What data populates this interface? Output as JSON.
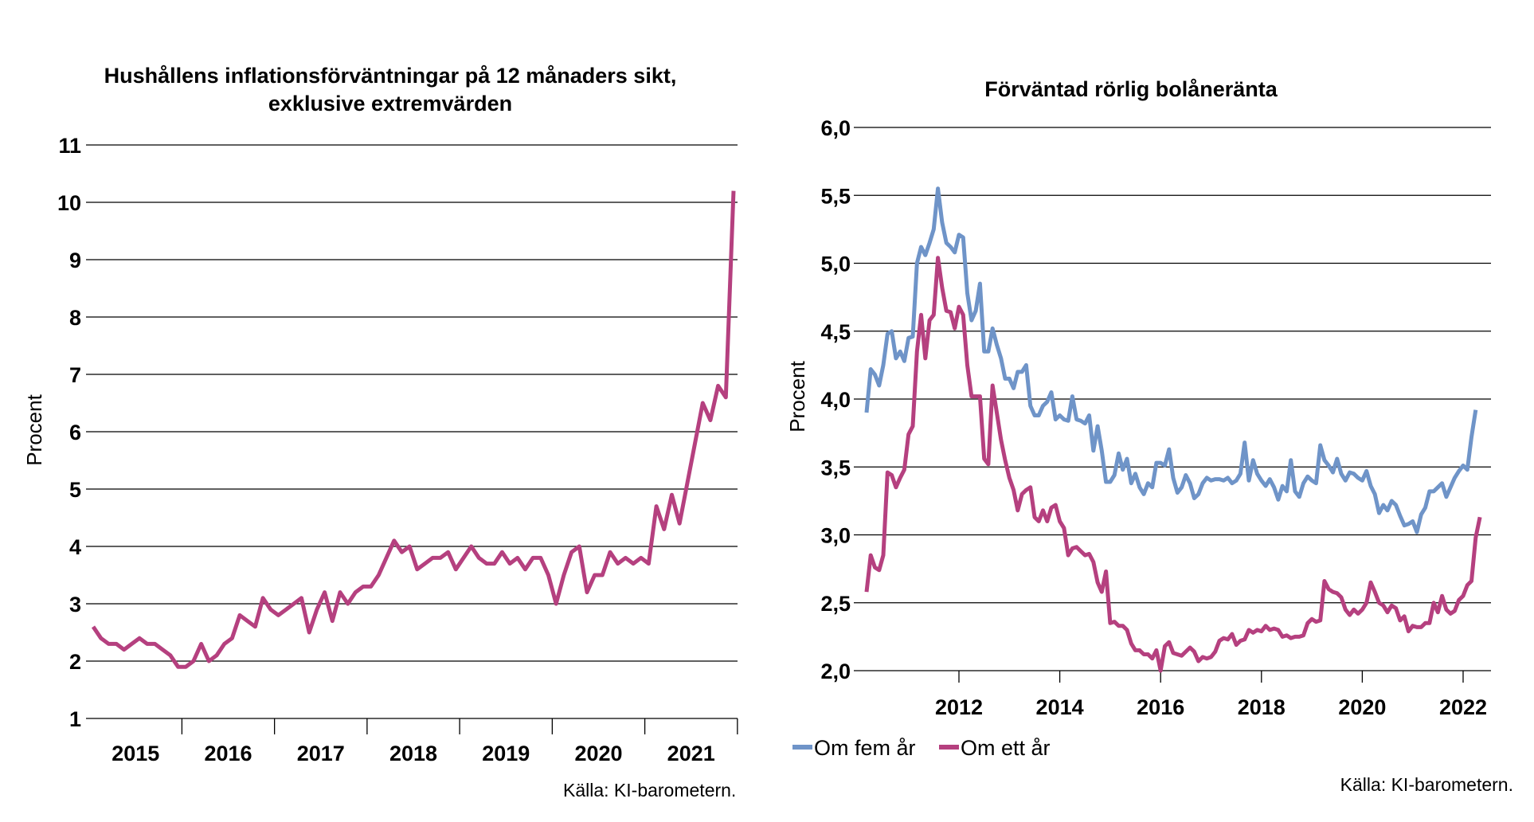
{
  "colors": {
    "inflation_line": "#B5407F",
    "five_year_line": "#6F94C8",
    "one_year_line": "#B5407F",
    "grid": "#000000"
  },
  "chart_data": [
    {
      "type": "line",
      "title_line1": "Hushållens inflationsförväntningar på 12 månaders sikt,",
      "title_line2": "exklusive extremvärden",
      "ylabel": "Procent",
      "xlabel": "",
      "ylim": [
        1,
        11
      ],
      "y_ticks": [
        "1",
        "2",
        "3",
        "4",
        "5",
        "6",
        "7",
        "8",
        "9",
        "10",
        "11"
      ],
      "x_ticks": [
        "2015",
        "2016",
        "2017",
        "2018",
        "2019",
        "2020",
        "2021"
      ],
      "grid": true,
      "legend": "none",
      "source": "Källa: KI-barometern.",
      "series": [
        {
          "color": "#B5407F",
          "x_start": "2015-01",
          "frequency": "monthly",
          "values": [
            2.6,
            2.4,
            2.3,
            2.3,
            2.2,
            2.3,
            2.4,
            2.3,
            2.3,
            2.2,
            2.1,
            1.9,
            1.9,
            2.0,
            2.3,
            2.0,
            2.1,
            2.3,
            2.4,
            2.8,
            2.7,
            2.6,
            3.1,
            2.9,
            2.8,
            2.9,
            3.0,
            3.1,
            2.5,
            2.9,
            3.2,
            2.7,
            3.2,
            3.0,
            3.2,
            3.3,
            3.3,
            3.5,
            3.8,
            4.1,
            3.9,
            4.0,
            3.6,
            3.7,
            3.8,
            3.8,
            3.9,
            3.6,
            3.8,
            4.0,
            3.8,
            3.7,
            3.7,
            3.9,
            3.7,
            3.8,
            3.6,
            3.8,
            3.8,
            3.5,
            3.0,
            3.5,
            3.9,
            4.0,
            3.2,
            3.5,
            3.5,
            3.9,
            3.7,
            3.8,
            3.7,
            3.8,
            3.7,
            4.7,
            4.3,
            4.9,
            4.4,
            5.1,
            5.8,
            6.5,
            6.2,
            6.8,
            6.6,
            10.2
          ]
        }
      ]
    },
    {
      "type": "line",
      "title": "Förväntad rörlig bolåneränta",
      "ylabel": "Procent",
      "xlabel": "",
      "ylim": [
        2.0,
        6.0
      ],
      "y_ticks": [
        "2,0",
        "2,5",
        "3,0",
        "3,5",
        "4,0",
        "4,5",
        "5,0",
        "5,5",
        "6,0"
      ],
      "x_ticks": [
        "2012",
        "2014",
        "2016",
        "2018",
        "2020",
        "2022"
      ],
      "grid": true,
      "legend": "bottom-left",
      "source": "Källa: KI-barometern.",
      "series": [
        {
          "name": "Om fem år",
          "color": "#6F94C8",
          "x_start": "2010-03",
          "frequency": "monthly",
          "values": [
            3.9,
            4.22,
            4.18,
            4.1,
            4.25,
            4.48,
            4.5,
            4.3,
            4.35,
            4.28,
            4.45,
            4.46,
            5.0,
            5.12,
            5.06,
            5.15,
            5.25,
            5.55,
            5.3,
            5.15,
            5.12,
            5.08,
            5.21,
            5.19,
            4.78,
            4.58,
            4.65,
            4.85,
            4.35,
            4.35,
            4.52,
            4.4,
            4.3,
            4.15,
            4.15,
            4.08,
            4.2,
            4.2,
            4.25,
            3.95,
            3.88,
            3.88,
            3.95,
            3.98,
            4.05,
            3.85,
            3.88,
            3.85,
            3.84,
            4.02,
            3.85,
            3.84,
            3.82,
            3.88,
            3.62,
            3.8,
            3.62,
            3.39,
            3.39,
            3.44,
            3.6,
            3.48,
            3.56,
            3.38,
            3.45,
            3.35,
            3.3,
            3.38,
            3.35,
            3.53,
            3.53,
            3.51,
            3.63,
            3.42,
            3.31,
            3.35,
            3.44,
            3.38,
            3.27,
            3.3,
            3.38,
            3.42,
            3.4,
            3.41,
            3.41,
            3.4,
            3.42,
            3.38,
            3.4,
            3.45,
            3.68,
            3.4,
            3.55,
            3.45,
            3.4,
            3.36,
            3.41,
            3.35,
            3.26,
            3.36,
            3.32,
            3.55,
            3.32,
            3.28,
            3.38,
            3.43,
            3.4,
            3.38,
            3.66,
            3.55,
            3.51,
            3.46,
            3.56,
            3.45,
            3.4,
            3.46,
            3.45,
            3.42,
            3.4,
            3.47,
            3.36,
            3.3,
            3.16,
            3.22,
            3.18,
            3.25,
            3.22,
            3.14,
            3.07,
            3.08,
            3.1,
            3.02,
            3.15,
            3.2,
            3.32,
            3.32,
            3.35,
            3.38,
            3.28,
            3.35,
            3.42,
            3.47,
            3.51,
            3.48,
            3.72,
            3.92
          ]
        },
        {
          "name": "Om ett år",
          "color": "#B5407F",
          "x_start": "2010-03",
          "frequency": "monthly",
          "values": [
            2.58,
            2.85,
            2.76,
            2.74,
            2.85,
            3.46,
            3.44,
            3.35,
            3.42,
            3.48,
            3.74,
            3.8,
            4.35,
            4.62,
            4.3,
            4.58,
            4.62,
            5.04,
            4.82,
            4.65,
            4.64,
            4.52,
            4.68,
            4.62,
            4.25,
            4.02,
            4.02,
            4.02,
            3.56,
            3.52,
            4.1,
            3.9,
            3.7,
            3.55,
            3.42,
            3.33,
            3.18,
            3.3,
            3.33,
            3.35,
            3.13,
            3.1,
            3.18,
            3.1,
            3.2,
            3.22,
            3.1,
            3.05,
            2.85,
            2.9,
            2.91,
            2.88,
            2.85,
            2.86,
            2.8,
            2.65,
            2.58,
            2.73,
            2.35,
            2.36,
            2.33,
            2.33,
            2.3,
            2.2,
            2.15,
            2.15,
            2.12,
            2.12,
            2.09,
            2.15,
            2.0,
            2.18,
            2.21,
            2.13,
            2.12,
            2.11,
            2.14,
            2.17,
            2.14,
            2.07,
            2.1,
            2.09,
            2.1,
            2.14,
            2.22,
            2.24,
            2.23,
            2.27,
            2.19,
            2.22,
            2.23,
            2.3,
            2.28,
            2.3,
            2.29,
            2.33,
            2.3,
            2.31,
            2.3,
            2.25,
            2.26,
            2.24,
            2.25,
            2.25,
            2.26,
            2.35,
            2.38,
            2.36,
            2.37,
            2.66,
            2.6,
            2.58,
            2.57,
            2.54,
            2.45,
            2.41,
            2.45,
            2.42,
            2.45,
            2.5,
            2.65,
            2.58,
            2.5,
            2.48,
            2.43,
            2.48,
            2.46,
            2.37,
            2.4,
            2.29,
            2.33,
            2.32,
            2.32,
            2.35,
            2.35,
            2.5,
            2.43,
            2.55,
            2.45,
            2.42,
            2.44,
            2.52,
            2.55,
            2.63,
            2.66,
            2.98,
            3.13
          ]
        }
      ]
    }
  ]
}
